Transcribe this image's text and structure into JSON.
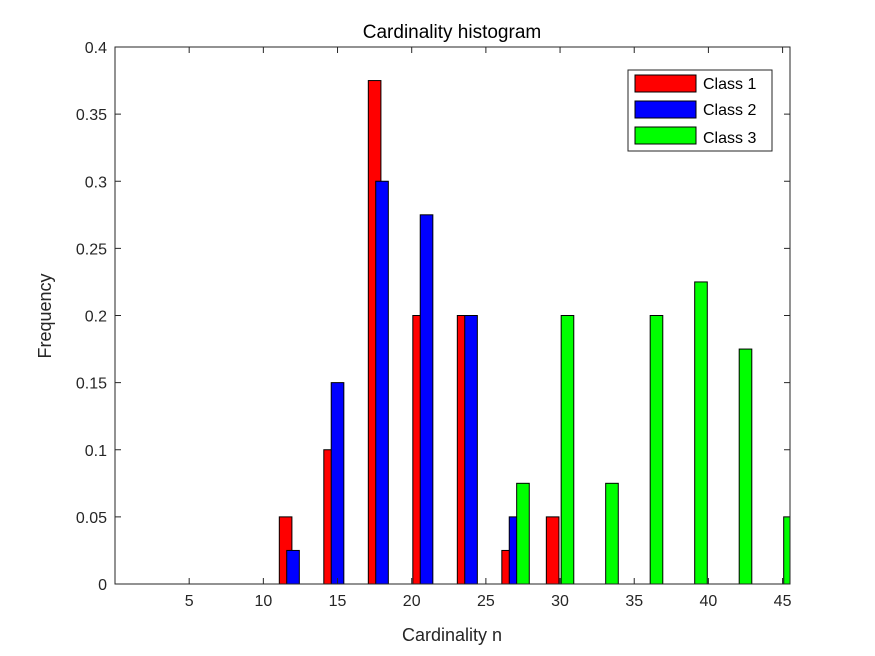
{
  "chart_data": {
    "type": "bar",
    "title": "Cardinality histogram",
    "xlabel": "Cardinality n",
    "ylabel": "Frequency",
    "xlim": [
      0,
      45.5
    ],
    "ylim": [
      0,
      0.4
    ],
    "xticks": [
      5,
      10,
      15,
      20,
      25,
      30,
      35,
      40,
      45
    ],
    "yticks": [
      0,
      0.05,
      0.1,
      0.15,
      0.2,
      0.25,
      0.3,
      0.35,
      0.4
    ],
    "ytick_labels": [
      "0",
      "0.05",
      "0.1",
      "0.15",
      "0.2",
      "0.25",
      "0.3",
      "0.35",
      "0.4"
    ],
    "legend_position": "top-right",
    "bar_width": 0.85,
    "series": [
      {
        "name": "Class 1",
        "color": "#ff0000",
        "x": [
          2.5,
          5.5,
          8.5,
          11.5,
          14.5,
          17.5,
          20.5,
          23.5,
          26.5,
          29.5
        ],
        "values": [
          0,
          0,
          0,
          0.05,
          0.1,
          0.375,
          0.2,
          0.2,
          0.025,
          0.05
        ]
      },
      {
        "name": "Class 2",
        "color": "#0000ff",
        "x": [
          3.0,
          6.0,
          9.0,
          12.0,
          15.0,
          18.0,
          21.0,
          24.0,
          27.0
        ],
        "values": [
          0,
          0,
          0,
          0.025,
          0.15,
          0.3,
          0.275,
          0.2,
          0.05
        ]
      },
      {
        "name": "Class 3",
        "color": "#00ff00",
        "x": [
          27.5,
          30.5,
          33.5,
          36.5,
          39.5,
          42.5,
          45.5
        ],
        "values": [
          0.075,
          0.2,
          0.075,
          0.2,
          0.225,
          0.175,
          0.05
        ]
      }
    ]
  }
}
